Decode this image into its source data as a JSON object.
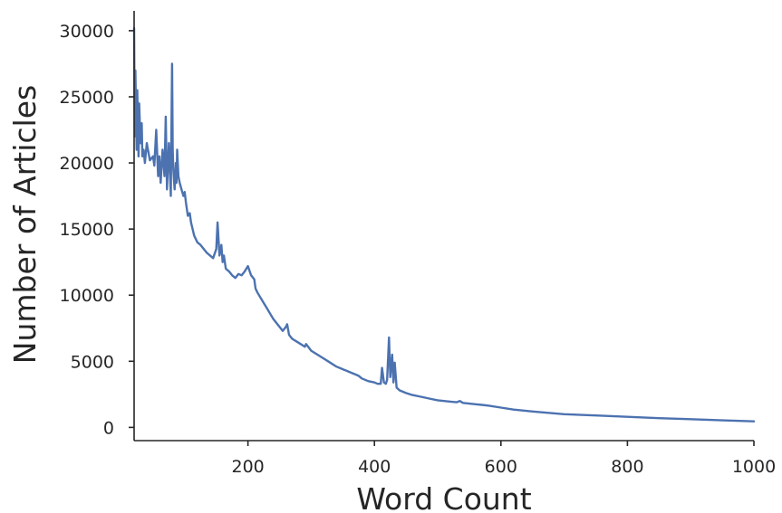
{
  "chart_data": {
    "type": "line",
    "title": "",
    "xlabel": "Word Count",
    "ylabel": "Number of Articles",
    "xlim": [
      20,
      1000
    ],
    "ylim": [
      -1000,
      31500
    ],
    "xticks": [
      200,
      400,
      600,
      800,
      1000
    ],
    "yticks": [
      0,
      5000,
      10000,
      15000,
      20000,
      25000,
      30000
    ],
    "xtick_labels": [
      "200",
      "400",
      "600",
      "800",
      "1000"
    ],
    "ytick_labels": [
      "0",
      "5000",
      "10000",
      "15000",
      "20000",
      "25000",
      "30000"
    ],
    "grid": false,
    "legend": "none",
    "colors": {
      "line": "#4c72b0",
      "axis": "#262626",
      "background": "#ffffff"
    },
    "series": [
      {
        "color": "#4c72b0",
        "x": [
          20,
          21,
          22,
          24,
          25,
          27,
          28,
          30,
          32,
          33,
          35,
          37,
          40,
          45,
          50,
          52,
          55,
          58,
          60,
          62,
          65,
          68,
          70,
          72,
          75,
          78,
          80,
          81,
          82,
          84,
          86,
          87,
          88,
          90,
          92,
          95,
          98,
          100,
          102,
          105,
          108,
          110,
          115,
          120,
          125,
          130,
          135,
          140,
          145,
          150,
          152,
          155,
          158,
          160,
          162,
          165,
          170,
          175,
          180,
          185,
          190,
          195,
          200,
          205,
          210,
          212,
          215,
          220,
          225,
          230,
          235,
          240,
          245,
          250,
          255,
          260,
          262,
          265,
          270,
          280,
          290,
          292,
          300,
          310,
          320,
          330,
          340,
          350,
          360,
          370,
          375,
          380,
          390,
          400,
          405,
          410,
          412,
          415,
          418,
          420,
          423,
          425,
          428,
          430,
          432,
          435,
          440,
          450,
          460,
          470,
          480,
          490,
          500,
          510,
          520,
          530,
          535,
          540,
          550,
          560,
          570,
          580,
          600,
          620,
          650,
          700,
          750,
          800,
          850,
          900,
          950,
          1000
        ],
        "y": [
          30200,
          22000,
          27000,
          21000,
          25500,
          20500,
          24500,
          21500,
          23000,
          20500,
          21000,
          20000,
          21500,
          20200,
          20500,
          19800,
          22500,
          19000,
          20500,
          18500,
          21000,
          19000,
          23500,
          18000,
          21500,
          17500,
          27500,
          21000,
          19500,
          18000,
          20000,
          18500,
          21000,
          19000,
          18500,
          18000,
          17500,
          17800,
          17000,
          16000,
          16200,
          15500,
          14500,
          14000,
          13800,
          13500,
          13200,
          13000,
          12800,
          13500,
          15500,
          13000,
          13800,
          12500,
          13000,
          12000,
          11800,
          11500,
          11300,
          11600,
          11500,
          11800,
          12200,
          11500,
          11200,
          10500,
          10200,
          9800,
          9400,
          9000,
          8600,
          8200,
          7900,
          7600,
          7300,
          7600,
          7800,
          7000,
          6700,
          6400,
          6100,
          6300,
          5800,
          5500,
          5200,
          4900,
          4600,
          4400,
          4200,
          4000,
          3900,
          3700,
          3500,
          3400,
          3300,
          3300,
          4500,
          3400,
          3300,
          3600,
          6800,
          3800,
          5500,
          3400,
          4900,
          3000,
          2800,
          2600,
          2450,
          2350,
          2250,
          2150,
          2050,
          2000,
          1950,
          1900,
          2000,
          1850,
          1800,
          1750,
          1700,
          1650,
          1500,
          1350,
          1200,
          1000,
          900,
          800,
          700,
          620,
          530,
          460
        ]
      }
    ]
  }
}
